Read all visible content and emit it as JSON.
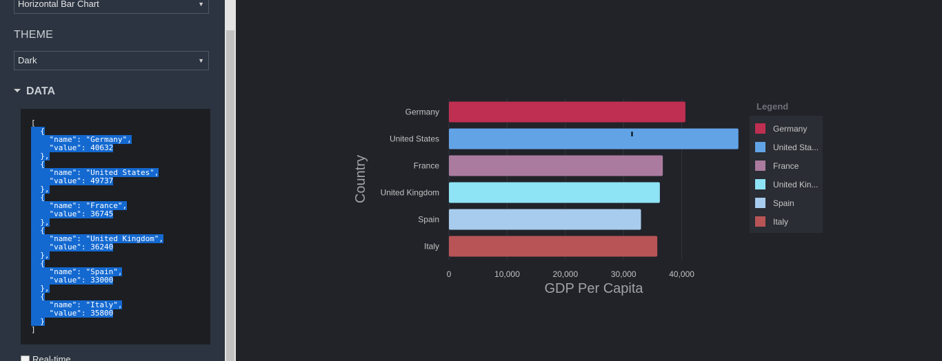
{
  "sidebar": {
    "chart_type_select": {
      "value": "Horizontal Bar Chart"
    },
    "theme_label": "THEME",
    "theme_select": {
      "value": "Dark"
    },
    "data_heading": "DATA",
    "editor_lines": [
      {
        "text": "[",
        "selected": false
      },
      {
        "text": "  {",
        "selected": true
      },
      {
        "text": "    \"name\": \"Germany\",",
        "selected": true
      },
      {
        "text": "    \"value\": 40632",
        "selected": true
      },
      {
        "text": "  },",
        "selected": true
      },
      {
        "text": "  {",
        "selected": true
      },
      {
        "text": "    \"name\": \"United States\",",
        "selected": true
      },
      {
        "text": "    \"value\": 49737",
        "selected": true
      },
      {
        "text": "  },",
        "selected": true
      },
      {
        "text": "  {",
        "selected": true
      },
      {
        "text": "    \"name\": \"France\",",
        "selected": true
      },
      {
        "text": "    \"value\": 36745",
        "selected": true
      },
      {
        "text": "  },",
        "selected": true
      },
      {
        "text": "  {",
        "selected": true
      },
      {
        "text": "    \"name\": \"United Kingdom\",",
        "selected": true
      },
      {
        "text": "    \"value\": 36240",
        "selected": true
      },
      {
        "text": "  },",
        "selected": true
      },
      {
        "text": "  {",
        "selected": true
      },
      {
        "text": "    \"name\": \"Spain\",",
        "selected": true
      },
      {
        "text": "    \"value\": 33000",
        "selected": true
      },
      {
        "text": "  },",
        "selected": true
      },
      {
        "text": "  {",
        "selected": true
      },
      {
        "text": "    \"name\": \"Italy\",",
        "selected": true
      },
      {
        "text": "    \"value\": 35800",
        "selected": true
      },
      {
        "text": "  }",
        "selected": true
      },
      {
        "text": "]",
        "selected": false
      }
    ],
    "realtime_label": "Real-time"
  },
  "chart_data": {
    "type": "bar",
    "orientation": "horizontal",
    "categories": [
      "Germany",
      "United States",
      "France",
      "United Kingdom",
      "Spain",
      "Italy"
    ],
    "values": [
      40632,
      49737,
      36745,
      36240,
      33000,
      35800
    ],
    "colors": [
      "#bf2f52",
      "#62a3e6",
      "#aa7b9e",
      "#8ee3f5",
      "#a8cced",
      "#b95456"
    ],
    "xlabel": "GDP Per Capita",
    "ylabel": "Country",
    "xlim": [
      0,
      50000
    ],
    "xticks": [
      0,
      10000,
      20000,
      30000,
      40000
    ],
    "xtick_labels": [
      "0",
      "10,000",
      "20,000",
      "30,000",
      "40,000"
    ],
    "grid": true,
    "legend": {
      "title": "Legend",
      "placement": "right",
      "labels": [
        "Germany",
        "United Sta...",
        "France",
        "United Kin...",
        "Spain",
        "Italy"
      ]
    }
  }
}
